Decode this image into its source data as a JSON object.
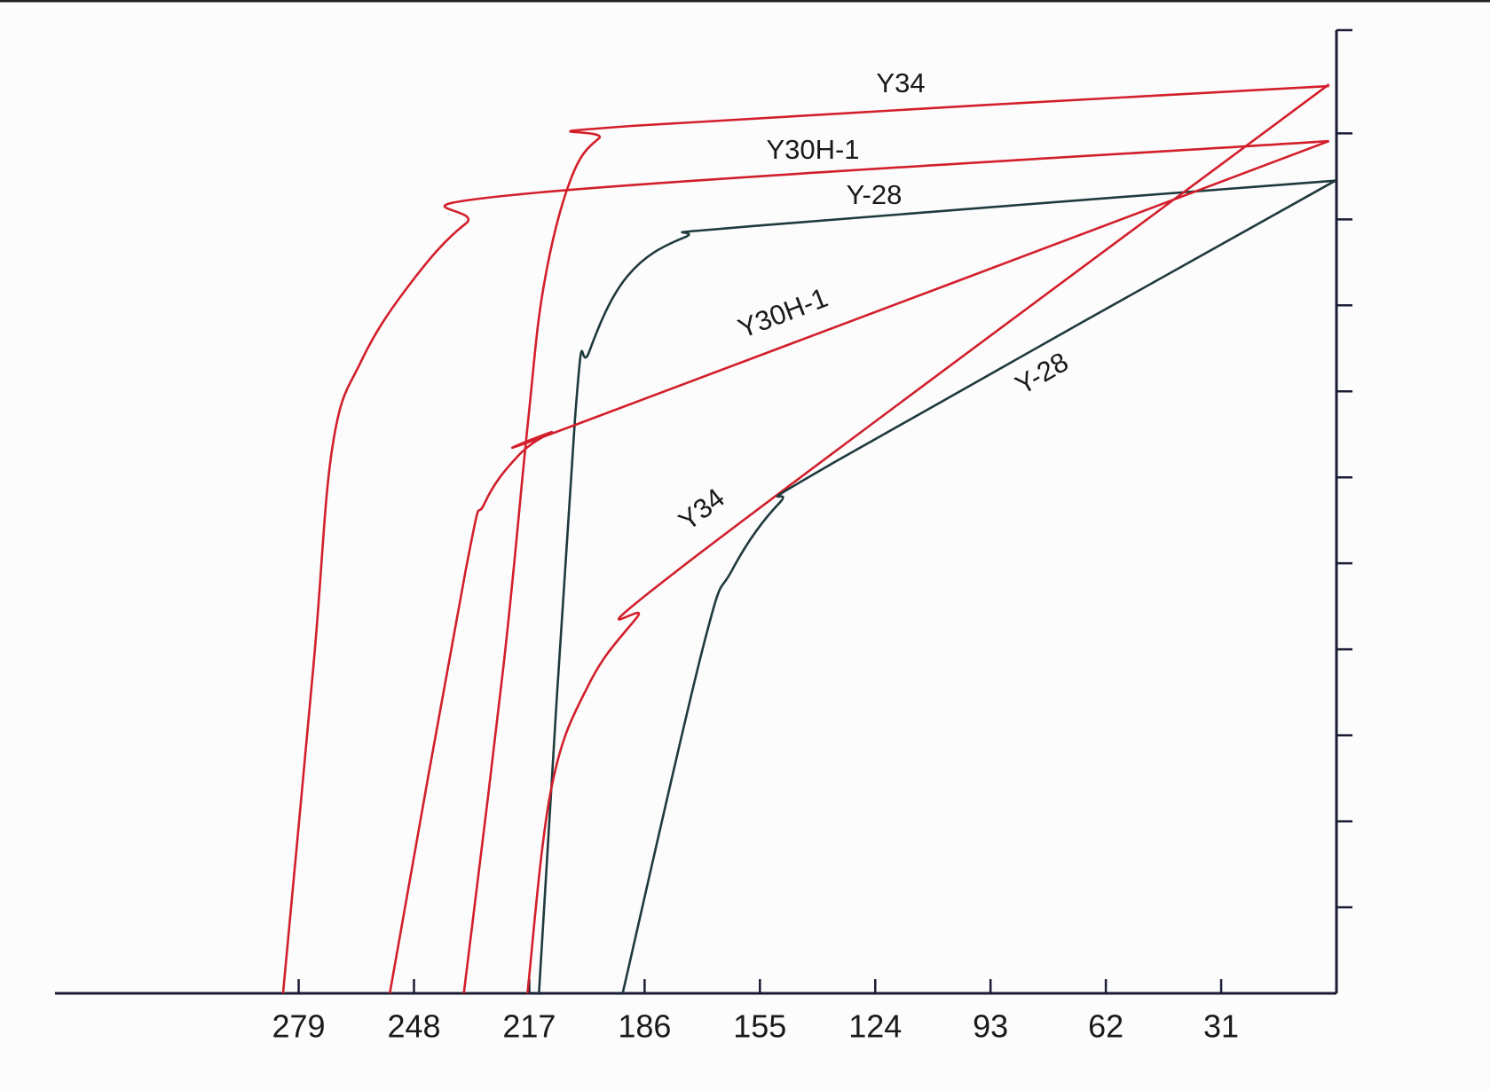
{
  "chart_data": {
    "type": "line",
    "xlim": [
      344.5,
      0
    ],
    "xticks": [
      279,
      248,
      217,
      186,
      155,
      124,
      93,
      62,
      31
    ],
    "ylim": [
      0,
      11.2
    ],
    "yticks": [
      1,
      2,
      3,
      4,
      5,
      6,
      7,
      8,
      9,
      10
    ],
    "series": [
      {
        "name": "Y34",
        "color": "#d21f2b",
        "x": [
          234.6,
          223.9,
          217.5,
          213.1,
          206.0,
          198.3,
          188.1,
          2.0
        ],
        "values": [
          0,
          3.82,
          6.58,
          8.23,
          9.45,
          9.94,
          10.09,
          10.55
        ]
      },
      {
        "name": "Y30H-1",
        "color": "#d21f2b",
        "x": [
          283.2,
          275.0,
          269.9,
          262.2,
          249.4,
          234.1,
          217.5,
          2.0
        ],
        "values": [
          0,
          3.82,
          6.36,
          7.35,
          8.23,
          8.95,
          9.3,
          9.91
        ]
      },
      {
        "name": "Y-28",
        "color": "#1f3a3d",
        "x": [
          214.4,
          204.7,
          200.9,
          190.6,
          175.3,
          157.4,
          0.3
        ],
        "values": [
          0,
          6.69,
          7.46,
          8.34,
          8.79,
          8.92,
          9.45
        ]
      },
      {
        "name": "Y30H-1",
        "color": "#d21f2b",
        "x": [
          254.5,
          234.1,
          229.0,
          220.0,
          211.1,
          203.4,
          2.0
        ],
        "values": [
          0,
          4.92,
          5.7,
          6.25,
          6.52,
          6.63,
          9.91
        ]
      },
      {
        "name": "Y34",
        "color": "#d21f2b",
        "x": [
          217.5,
          211.1,
          200.9,
          188.1,
          175.3,
          2.0
        ],
        "values": [
          0,
          2.38,
          3.6,
          4.37,
          4.98,
          10.57
        ]
      },
      {
        "name": "Y-28",
        "color": "#1f3a3d",
        "x": [
          191.9,
          170.2,
          162.5,
          149.8,
          134.4,
          0.3
        ],
        "values": [
          0,
          4.04,
          4.92,
          5.7,
          6.19,
          9.45
        ]
      }
    ]
  }
}
